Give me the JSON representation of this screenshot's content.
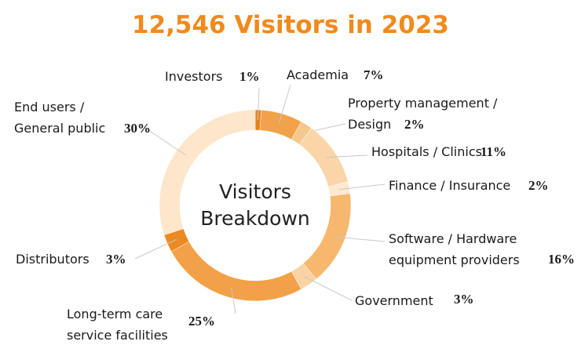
{
  "chart_data": {
    "type": "donut",
    "title": "12,546 Visitors in 2023",
    "center_label": "Visitors Breakdown",
    "categories": [
      "Investors",
      "Academia",
      "Property management / Design",
      "Hospitals / Clinics",
      "Finance / Insurance",
      "Software / Hardware equipment providers",
      "Government",
      "Long-term care service facilities",
      "Distributors",
      "End users / General public"
    ],
    "values": [
      1,
      7,
      2,
      11,
      2,
      16,
      3,
      25,
      3,
      30
    ],
    "value_labels": [
      "1%",
      "7%",
      "2%",
      "11%",
      "2%",
      "16%",
      "3%",
      "25%",
      "3%",
      "30%"
    ],
    "colors": [
      "#e8801c",
      "#f1a24a",
      "#f6c88c",
      "#fad5a8",
      "#fde8d0",
      "#f6b76e",
      "#fad3a4",
      "#f2a148",
      "#eb8a22",
      "#fde6ca"
    ]
  }
}
